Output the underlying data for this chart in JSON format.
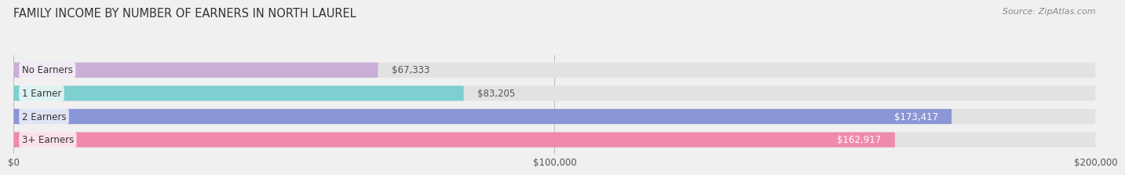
{
  "title": "FAMILY INCOME BY NUMBER OF EARNERS IN NORTH LAUREL",
  "source": "Source: ZipAtlas.com",
  "categories": [
    "No Earners",
    "1 Earner",
    "2 Earners",
    "3+ Earners"
  ],
  "values": [
    67333,
    83205,
    173417,
    162917
  ],
  "bar_colors": [
    "#c9aed6",
    "#7ecfcf",
    "#8b96d6",
    "#f08aaa"
  ],
  "value_labels": [
    "$67,333",
    "$83,205",
    "$173,417",
    "$162,917"
  ],
  "label_colors": [
    "#555555",
    "#555555",
    "#ffffff",
    "#ffffff"
  ],
  "xlim": [
    0,
    200000
  ],
  "xtick_values": [
    0,
    100000,
    200000
  ],
  "xtick_labels": [
    "$0",
    "$100,000",
    "$200,000"
  ],
  "background_color": "#f0f0f0",
  "bar_background_color": "#e2e2e2",
  "bar_height": 0.65,
  "title_fontsize": 10.5,
  "source_fontsize": 8,
  "label_fontsize": 8.5,
  "tick_fontsize": 8.5
}
